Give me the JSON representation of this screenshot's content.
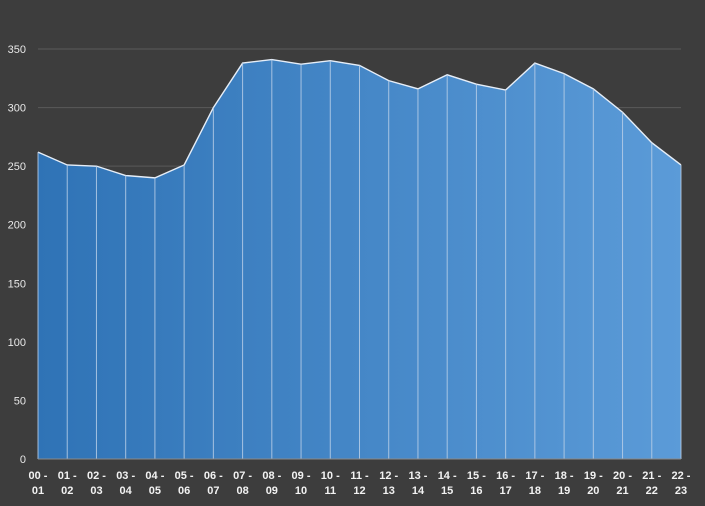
{
  "chart_data": {
    "type": "area",
    "title": "",
    "xlabel": "",
    "ylabel": "",
    "categories": [
      [
        "00 -",
        "01"
      ],
      [
        "01 -",
        "02"
      ],
      [
        "02 -",
        "03"
      ],
      [
        "03 -",
        "04"
      ],
      [
        "04 -",
        "05"
      ],
      [
        "05 -",
        "06"
      ],
      [
        "06 -",
        "07"
      ],
      [
        "07 -",
        "08"
      ],
      [
        "08 -",
        "09"
      ],
      [
        "09 -",
        "10"
      ],
      [
        "10 -",
        "11"
      ],
      [
        "11 -",
        "12"
      ],
      [
        "12 -",
        "13"
      ],
      [
        "13 -",
        "14"
      ],
      [
        "14 -",
        "15"
      ],
      [
        "15 -",
        "16"
      ],
      [
        "16 -",
        "17"
      ],
      [
        "17 -",
        "18"
      ],
      [
        "18 -",
        "19"
      ],
      [
        "19 -",
        "20"
      ],
      [
        "20 -",
        "21"
      ],
      [
        "21 -",
        "22"
      ],
      [
        "22 -",
        "23"
      ]
    ],
    "values": [
      262,
      251,
      250,
      242,
      240,
      251,
      300,
      338,
      341,
      337,
      340,
      336,
      323,
      316,
      328,
      320,
      315,
      338,
      329,
      316,
      296,
      270,
      251
    ],
    "ylim": [
      0,
      350
    ],
    "yticks": [
      0,
      50,
      100,
      150,
      200,
      250,
      300,
      350
    ],
    "grid": true,
    "legend": "none",
    "colors": {
      "background": "#3d3d3d",
      "fill_start": "#2f73b6",
      "fill_end": "#5b9bd8",
      "line": "#e6eef8",
      "grid": "#5a5a5a"
    }
  }
}
